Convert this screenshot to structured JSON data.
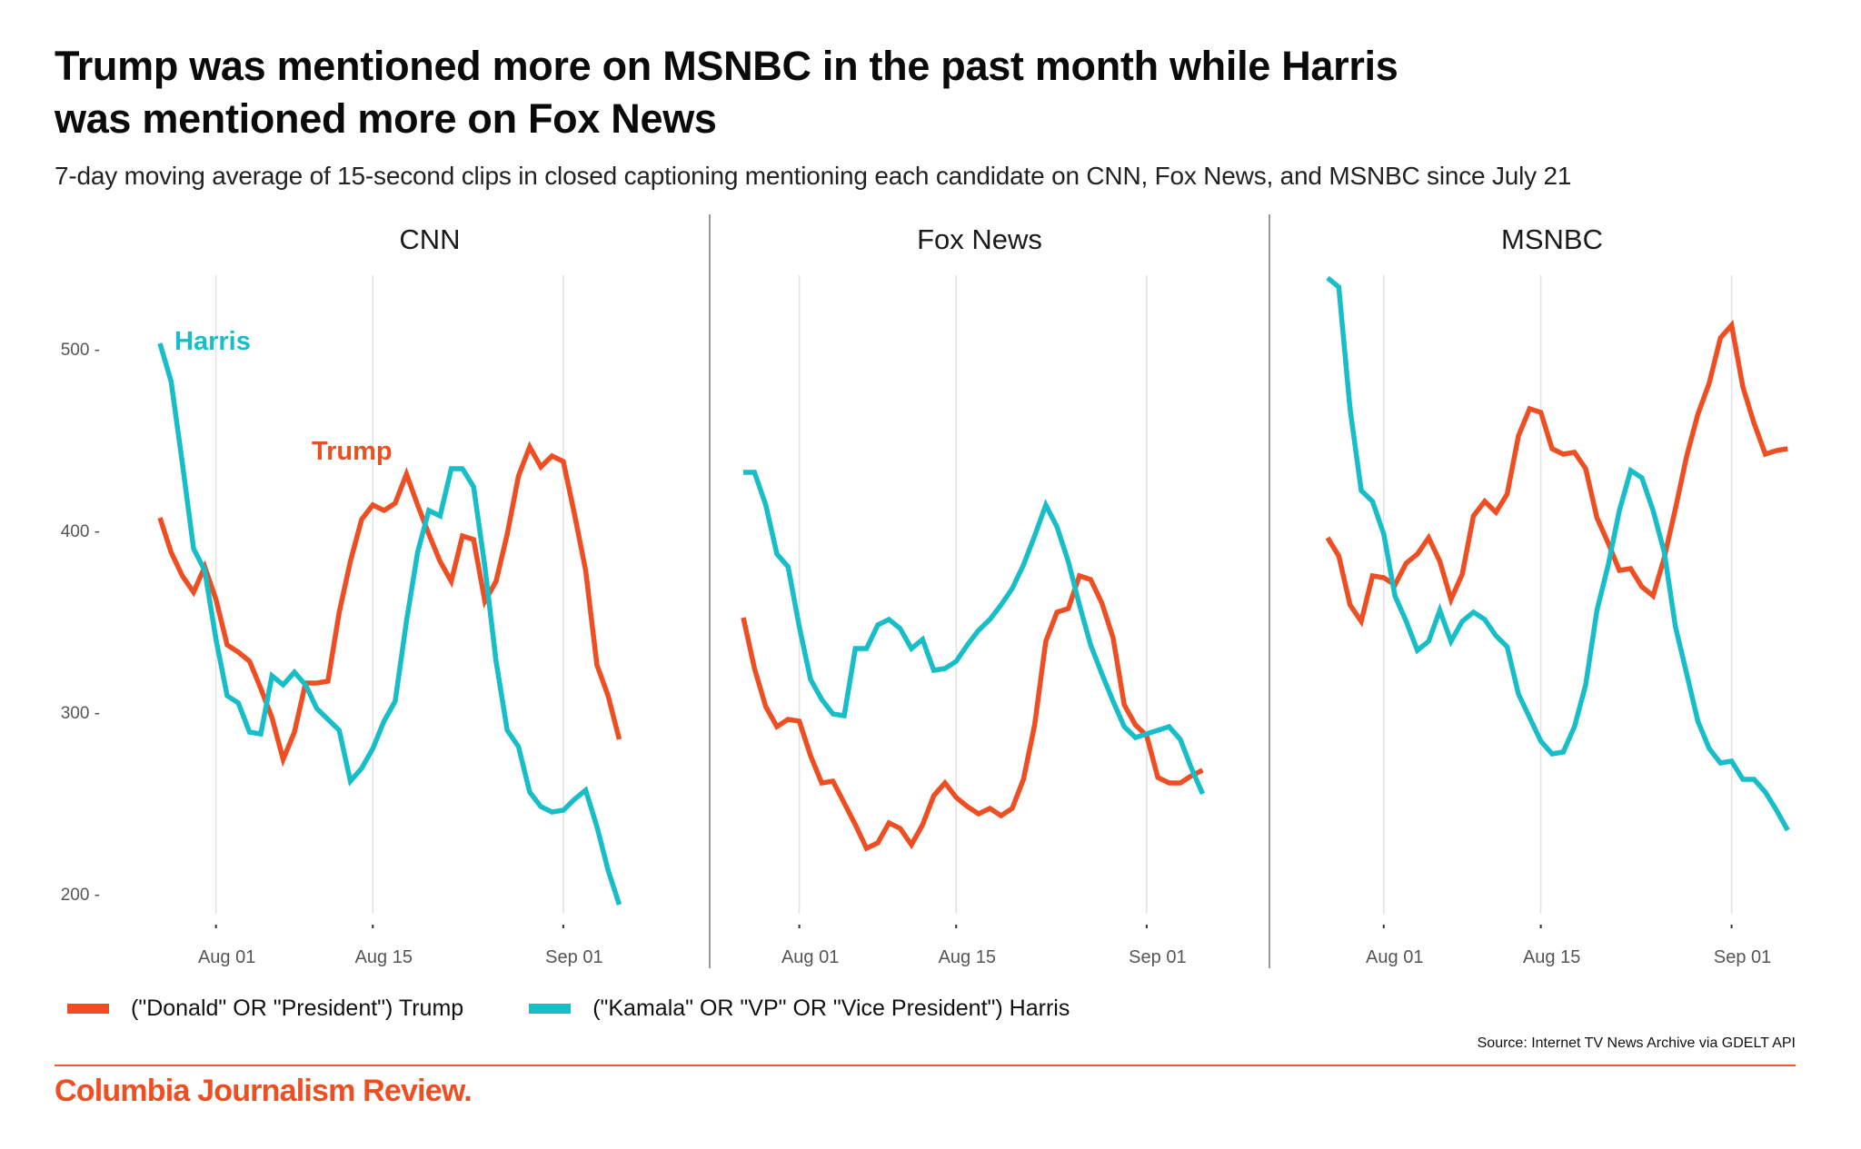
{
  "header": {
    "title_line1": "Trump was mentioned more on MSNBC in the past month while Harris",
    "title_line2": "was mentioned more on Fox News",
    "subtitle": "7-day moving average of 15-second clips in closed captioning mentioning each candidate on CNN, Fox News, and MSNBC since July 21"
  },
  "colors": {
    "trump": "#EE4E22",
    "harris": "#17BEC8",
    "brand": "#EE4E22",
    "rule": "#EE5A2E"
  },
  "legend": {
    "trump_label": "(\"Donald\" OR \"President\") Trump",
    "harris_label": "(\"Kamala\" OR \"VP\" OR \"Vice President\") Harris"
  },
  "footer": {
    "source": "Source: Internet TV News Archive via GDELT API",
    "brand": "Columbia Journalism Review."
  },
  "chart_data": {
    "type": "line",
    "title": "Trump was mentioned more on MSNBC in the past month while Harris was mentioned more on Fox News",
    "subtitle": "7-day moving average of 15-second clips in closed captioning mentioning each candidate on CNN, Fox News, and MSNBC since July 21",
    "xlabel": "",
    "ylabel": "",
    "ylim": [
      185,
      545
    ],
    "yticks": [
      200,
      300,
      400,
      500
    ],
    "xticks": [
      {
        "date": "2024-08-01",
        "label": "Aug 01"
      },
      {
        "date": "2024-08-15",
        "label": "Aug 15"
      },
      {
        "date": "2024-09-01",
        "label": "Sep 01"
      }
    ],
    "x_start": "2024-07-27",
    "x_end": "2024-09-06",
    "grid": "vertical",
    "legend_position": "bottom-left",
    "annotations": [
      {
        "panel": "CNN",
        "text": "Harris",
        "series": "Harris"
      },
      {
        "panel": "CNN",
        "text": "Trump",
        "series": "Trump"
      }
    ],
    "panels": [
      {
        "name": "CNN",
        "series": [
          {
            "name": "Trump",
            "values": [
              407,
              388,
              375,
              366,
              380,
              362,
              337,
              333,
              328,
              313,
              297,
              274,
              289,
              316,
              316,
              317,
              355,
              383,
              406,
              414,
              411,
              415,
              431,
              414,
              398,
              383,
              372,
              397,
              395,
              361,
              372,
              398,
              430,
              446,
              435,
              441,
              438,
              409,
              378,
              326,
              309,
              285
            ]
          },
          {
            "name": "Harris",
            "values": [
              503,
              482,
              437,
              390,
              378,
              340,
              309,
              305,
              289,
              288,
              320,
              315,
              322,
              315,
              302,
              296,
              290,
              262,
              269,
              280,
              295,
              306,
              350,
              388,
              411,
              408,
              434,
              434,
              424,
              380,
              328,
              290,
              281,
              256,
              248,
              245,
              246,
              252,
              257,
              237,
              213,
              194
            ]
          }
        ]
      },
      {
        "name": "Fox News",
        "series": [
          {
            "name": "Trump",
            "values": [
              352,
              324,
              303,
              292,
              296,
              295,
              276,
              261,
              262,
              250,
              238,
              225,
              228,
              239,
              236,
              227,
              238,
              254,
              261,
              253,
              248,
              244,
              247,
              243,
              247,
              263,
              293,
              339,
              355,
              357,
              375,
              373,
              360,
              341,
              304,
              293,
              287,
              264,
              261,
              261,
              265,
              268
            ]
          },
          {
            "name": "Harris",
            "values": [
              432,
              432,
              414,
              387,
              380,
              347,
              318,
              307,
              299,
              298,
              335,
              335,
              348,
              351,
              346,
              335,
              340,
              323,
              324,
              328,
              337,
              345,
              351,
              359,
              368,
              381,
              397,
              414,
              402,
              383,
              359,
              337,
              321,
              306,
              292,
              286,
              288,
              290,
              292,
              285,
              269,
              255
            ]
          }
        ]
      },
      {
        "name": "MSNBC",
        "series": [
          {
            "name": "Trump",
            "values": [
              396,
              386,
              359,
              350,
              375,
              374,
              370,
              382,
              387,
              396,
              383,
              362,
              376,
              408,
              416,
              410,
              420,
              452,
              467,
              465,
              445,
              442,
              443,
              434,
              407,
              393,
              378,
              379,
              369,
              364,
              385,
              412,
              441,
              464,
              481,
              506,
              513,
              479,
              459,
              442,
              444,
              445
            ]
          },
          {
            "name": "Harris",
            "values": [
              539,
              534,
              467,
              422,
              416,
              398,
              364,
              350,
              334,
              339,
              356,
              339,
              350,
              355,
              351,
              342,
              336,
              310,
              297,
              284,
              277,
              278,
              292,
              315,
              356,
              381,
              411,
              433,
              429,
              411,
              388,
              347,
              321,
              295,
              280,
              272,
              273,
              263,
              263,
              256,
              246,
              235
            ]
          }
        ]
      }
    ]
  }
}
